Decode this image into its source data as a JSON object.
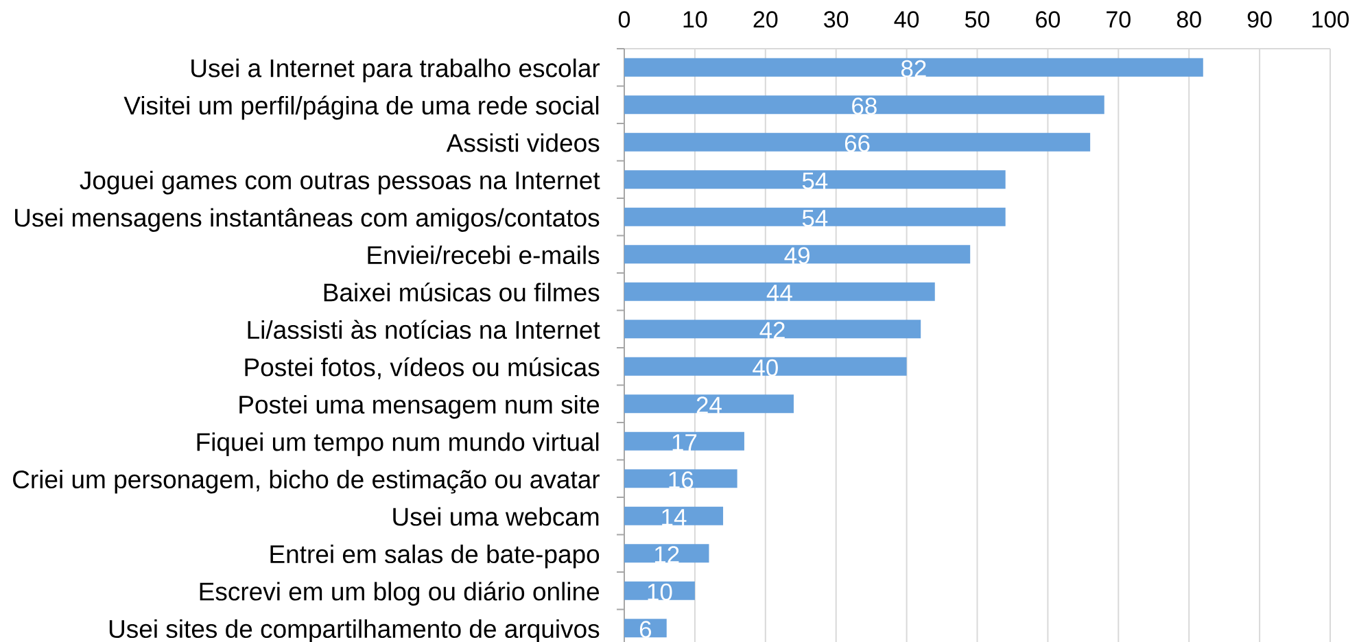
{
  "chart_data": {
    "type": "bar",
    "orientation": "horizontal",
    "categories": [
      "Usei a Internet para trabalho escolar",
      "Visitei um perfil/página de uma rede social",
      "Assisti videos",
      "Joguei games com outras pessoas na Internet",
      "Usei mensagens instantâneas com amigos/contatos",
      "Enviei/recebi e-mails",
      "Baixei músicas ou filmes",
      "Li/assisti às notícias na Internet",
      "Postei fotos, vídeos ou músicas",
      "Postei uma mensagem num site",
      "Fiquei um tempo num mundo virtual",
      "Criei um personagem, bicho de estimação ou avatar",
      "Usei uma webcam",
      "Entrei em salas de bate-papo",
      "Escrevi em um blog ou diário online",
      "Usei sites de compartilhamento de arquivos"
    ],
    "values": [
      82,
      68,
      66,
      54,
      54,
      49,
      44,
      42,
      40,
      24,
      17,
      16,
      14,
      12,
      10,
      6
    ],
    "color": "#67a1dc",
    "xlim": [
      0,
      100
    ],
    "xticks": [
      0,
      10,
      20,
      30,
      40,
      50,
      60,
      70,
      80,
      90,
      100
    ],
    "grid": "x",
    "data_labels": true
  }
}
